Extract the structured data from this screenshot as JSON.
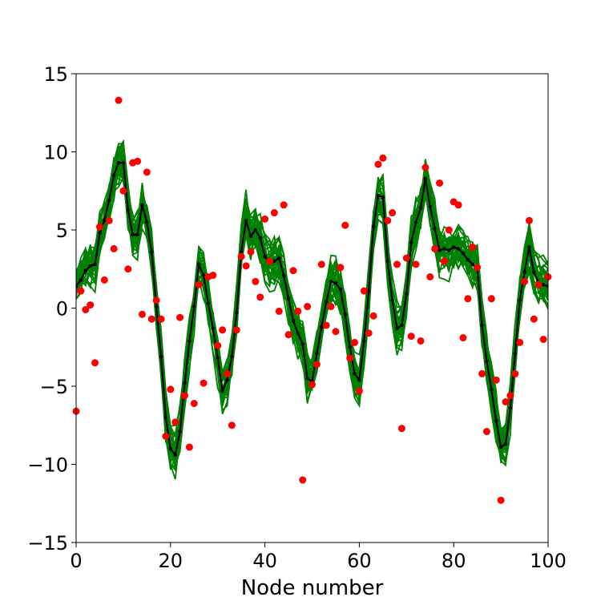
{
  "chart_data": {
    "type": "line",
    "xlabel": "Node number",
    "ylabel": "",
    "xlim": [
      0,
      100
    ],
    "ylim": [
      -15,
      15
    ],
    "x_ticks": [
      0,
      20,
      40,
      60,
      80,
      100
    ],
    "y_ticks": [
      -15,
      -10,
      -5,
      0,
      5,
      10,
      15
    ],
    "x_tick_labels": [
      "0",
      "20",
      "40",
      "60",
      "80",
      "100"
    ],
    "y_tick_labels": [
      "−15",
      "−10",
      "−5",
      "0",
      "5",
      "10",
      "15"
    ],
    "grid": false,
    "colors": {
      "ensemble": "#008000",
      "mean": "#000000",
      "observations": "#ff0000"
    },
    "mean_series": {
      "x": [
        0,
        1,
        2,
        3,
        4,
        5,
        6,
        7,
        8,
        9,
        10,
        11,
        12,
        13,
        14,
        15,
        16,
        17,
        18,
        19,
        20,
        21,
        22,
        23,
        24,
        25,
        26,
        27,
        28,
        29,
        30,
        31,
        32,
        33,
        34,
        35,
        36,
        37,
        38,
        39,
        40,
        41,
        42,
        43,
        44,
        45,
        46,
        47,
        48,
        49,
        50,
        51,
        52,
        53,
        54,
        55,
        56,
        57,
        58,
        59,
        60,
        61,
        62,
        63,
        64,
        65,
        66,
        67,
        68,
        69,
        70,
        71,
        72,
        73,
        74,
        75,
        76,
        77,
        78,
        79,
        80,
        81,
        82,
        83,
        84,
        85,
        86,
        87,
        88,
        89,
        90,
        91,
        92,
        93,
        94,
        95,
        96,
        97,
        98,
        99,
        100
      ],
      "y": [
        1.4,
        1.8,
        2.4,
        2.7,
        2.8,
        4.8,
        5.6,
        6.9,
        8.5,
        9.3,
        9.3,
        6.3,
        4.7,
        4.7,
        6.6,
        5.5,
        3.6,
        0.1,
        -3.1,
        -7.0,
        -9.0,
        -9.4,
        -7.9,
        -4.8,
        -2.1,
        0.1,
        2.8,
        2.1,
        0.3,
        -1.3,
        -3.2,
        -5.3,
        -4.6,
        -3.1,
        -0.3,
        3.6,
        5.6,
        4.6,
        5.0,
        4.5,
        3.3,
        2.9,
        3.0,
        3.2,
        2.1,
        0.6,
        -0.8,
        -1.6,
        -2.3,
        -4.5,
        -4.7,
        -2.9,
        -1.2,
        0.4,
        1.7,
        1.6,
        1.2,
        -0.4,
        -2.5,
        -4.2,
        -4.6,
        -2.1,
        1.1,
        5.2,
        7.2,
        7.1,
        3.0,
        0.5,
        -1.3,
        -1.1,
        0.9,
        4.2,
        5.5,
        6.4,
        8.3,
        6.5,
        5.1,
        3.7,
        3.8,
        3.7,
        3.9,
        3.8,
        3.5,
        3.1,
        2.8,
        2.6,
        -1.1,
        -3.4,
        -5.2,
        -7.2,
        -8.9,
        -8.7,
        -6.4,
        -2.9,
        0.5,
        2.3,
        3.9,
        2.3,
        1.6,
        1.5,
        1.4
      ]
    },
    "observations": [
      {
        "x": 0,
        "y": -6.6
      },
      {
        "x": 1,
        "y": 1.1
      },
      {
        "x": 2,
        "y": -0.1
      },
      {
        "x": 3,
        "y": 0.2
      },
      {
        "x": 4,
        "y": -3.5
      },
      {
        "x": 5,
        "y": 5.2
      },
      {
        "x": 6,
        "y": 1.8
      },
      {
        "x": 7,
        "y": 5.6
      },
      {
        "x": 8,
        "y": 3.8
      },
      {
        "x": 9,
        "y": 13.3
      },
      {
        "x": 10,
        "y": 7.5
      },
      {
        "x": 11,
        "y": 2.5
      },
      {
        "x": 12,
        "y": 9.3
      },
      {
        "x": 13,
        "y": 9.4
      },
      {
        "x": 14,
        "y": -0.4
      },
      {
        "x": 15,
        "y": 8.7
      },
      {
        "x": 16,
        "y": -0.7
      },
      {
        "x": 17,
        "y": 0.5
      },
      {
        "x": 18,
        "y": -0.7
      },
      {
        "x": 19,
        "y": -8.2
      },
      {
        "x": 20,
        "y": -5.2
      },
      {
        "x": 21,
        "y": -7.3
      },
      {
        "x": 22,
        "y": -0.6
      },
      {
        "x": 23,
        "y": -5.6
      },
      {
        "x": 24,
        "y": -8.9
      },
      {
        "x": 25,
        "y": -6.1
      },
      {
        "x": 26,
        "y": 1.5
      },
      {
        "x": 27,
        "y": -4.8
      },
      {
        "x": 28,
        "y": 2.0
      },
      {
        "x": 29,
        "y": 2.1
      },
      {
        "x": 30,
        "y": -2.4
      },
      {
        "x": 31,
        "y": -1.4
      },
      {
        "x": 32,
        "y": -4.2
      },
      {
        "x": 33,
        "y": -7.5
      },
      {
        "x": 34,
        "y": -1.4
      },
      {
        "x": 35,
        "y": 3.3
      },
      {
        "x": 36,
        "y": 2.7
      },
      {
        "x": 37,
        "y": 3.6
      },
      {
        "x": 38,
        "y": 1.7
      },
      {
        "x": 39,
        "y": 0.7
      },
      {
        "x": 40,
        "y": 5.7
      },
      {
        "x": 41,
        "y": 3.0
      },
      {
        "x": 42,
        "y": 6.1
      },
      {
        "x": 43,
        "y": -0.2
      },
      {
        "x": 44,
        "y": 6.6
      },
      {
        "x": 45,
        "y": -1.7
      },
      {
        "x": 46,
        "y": 2.4
      },
      {
        "x": 47,
        "y": -0.2
      },
      {
        "x": 48,
        "y": -11.0
      },
      {
        "x": 49,
        "y": 0.1
      },
      {
        "x": 50,
        "y": -4.9
      },
      {
        "x": 51,
        "y": -3.6
      },
      {
        "x": 52,
        "y": 2.8
      },
      {
        "x": 53,
        "y": -1.1
      },
      {
        "x": 54,
        "y": 0.1
      },
      {
        "x": 55,
        "y": -1.5
      },
      {
        "x": 56,
        "y": 2.6
      },
      {
        "x": 57,
        "y": 5.3
      },
      {
        "x": 58,
        "y": -3.2
      },
      {
        "x": 59,
        "y": -2.2
      },
      {
        "x": 60,
        "y": -5.3
      },
      {
        "x": 61,
        "y": 1.1
      },
      {
        "x": 62,
        "y": -1.6
      },
      {
        "x": 63,
        "y": -0.5
      },
      {
        "x": 64,
        "y": 9.2
      },
      {
        "x": 65,
        "y": 9.6
      },
      {
        "x": 66,
        "y": 5.6
      },
      {
        "x": 67,
        "y": 6.1
      },
      {
        "x": 68,
        "y": 2.8
      },
      {
        "x": 69,
        "y": -7.7
      },
      {
        "x": 70,
        "y": 3.2
      },
      {
        "x": 71,
        "y": -1.8
      },
      {
        "x": 72,
        "y": 2.8
      },
      {
        "x": 73,
        "y": -2.1
      },
      {
        "x": 74,
        "y": 9.0
      },
      {
        "x": 75,
        "y": 2.0
      },
      {
        "x": 76,
        "y": 3.8
      },
      {
        "x": 77,
        "y": 8.0
      },
      {
        "x": 78,
        "y": 3.0
      },
      {
        "x": 79,
        "y": 5.0
      },
      {
        "x": 80,
        "y": 6.8
      },
      {
        "x": 81,
        "y": 6.6
      },
      {
        "x": 82,
        "y": -1.9
      },
      {
        "x": 83,
        "y": 0.6
      },
      {
        "x": 84,
        "y": 3.9
      },
      {
        "x": 85,
        "y": 2.6
      },
      {
        "x": 86,
        "y": -4.2
      },
      {
        "x": 87,
        "y": -7.9
      },
      {
        "x": 88,
        "y": 0.6
      },
      {
        "x": 89,
        "y": -4.6
      },
      {
        "x": 90,
        "y": -12.3
      },
      {
        "x": 91,
        "y": -6.0
      },
      {
        "x": 92,
        "y": -5.6
      },
      {
        "x": 93,
        "y": -4.2
      },
      {
        "x": 94,
        "y": -2.2
      },
      {
        "x": 95,
        "y": 1.7
      },
      {
        "x": 96,
        "y": 5.6
      },
      {
        "x": 97,
        "y": -0.7
      },
      {
        "x": 98,
        "y": 1.5
      },
      {
        "x": 99,
        "y": -2.0
      },
      {
        "x": 100,
        "y": 2.0
      }
    ],
    "ensemble": {
      "member_count": 30,
      "approx_spread": 2.5
    }
  }
}
